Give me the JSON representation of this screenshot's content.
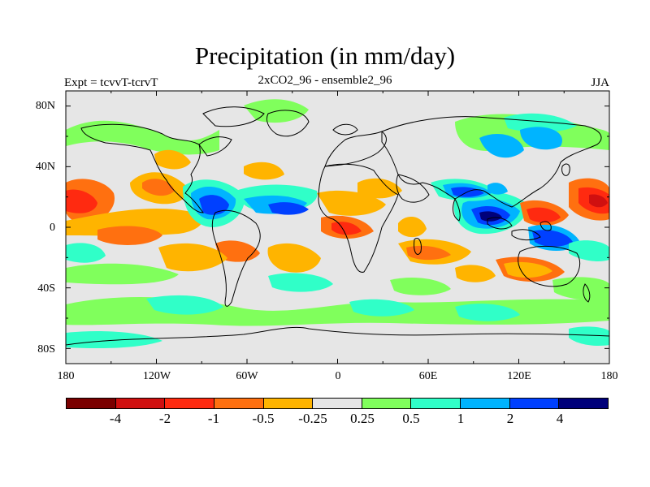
{
  "title": "Precipitation (in mm/day)",
  "subtitle": "2xCO2_96 - ensemble2_96",
  "left_label": "Expt = tcvvT-tcrvT",
  "season": "JJA",
  "lat_ticks": [
    "80N",
    "40N",
    "0",
    "40S",
    "80S"
  ],
  "lon_ticks": [
    "180",
    "120W",
    "60W",
    "0",
    "60E",
    "120E",
    "180"
  ],
  "colorbar": {
    "labels": [
      "-4",
      "-2",
      "-1",
      "-0.5",
      "-0.25",
      "0.25",
      "0.5",
      "1",
      "2",
      "4"
    ],
    "colors": [
      "#7a0000",
      "#d01010",
      "#ff2a10",
      "#ff7010",
      "#ffb400",
      "#e6e6e6",
      "#80ff5c",
      "#30ffc8",
      "#00b4ff",
      "#0040ff",
      "#00007a"
    ]
  },
  "palette": {
    "background": "#e6e6e6",
    "coast": "#000000"
  }
}
